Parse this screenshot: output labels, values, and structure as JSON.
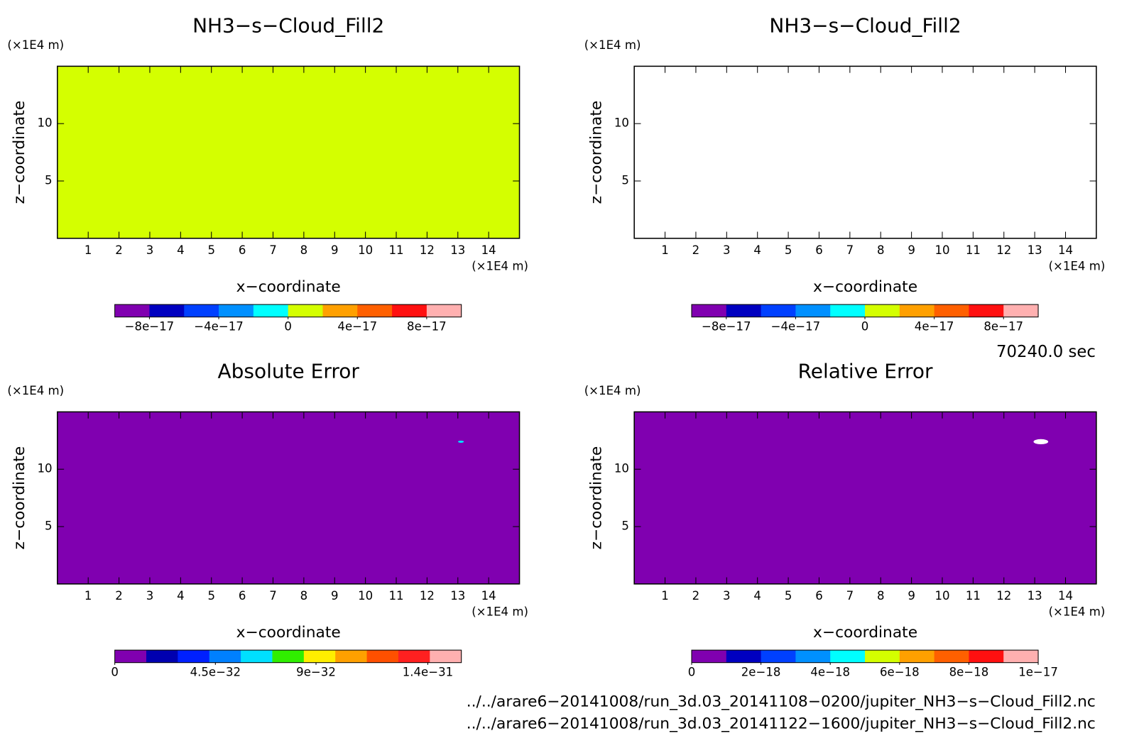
{
  "chart_data": [
    {
      "type": "contour",
      "title": "NH3−s−Cloud_Fill2",
      "xlabel": "x−coordinate",
      "ylabel": "z−coordinate",
      "xunit": "(×1E4 m)",
      "yunit": "(×1E4 m)",
      "xlim": [
        0,
        15
      ],
      "ylim": [
        0,
        15
      ],
      "xticks": [
        1,
        2,
        3,
        4,
        5,
        6,
        7,
        8,
        9,
        10,
        11,
        12,
        13,
        14
      ],
      "yticks": [
        5,
        10
      ],
      "field_value": 0,
      "colorbar": {
        "clim": [
          -1e-16,
          1e-16
        ],
        "colors": [
          "#8000b0",
          "#0000c0",
          "#0040ff",
          "#0090ff",
          "#00ffff",
          "#d4ff00",
          "#ffa000",
          "#ff6000",
          "#ff1010",
          "#ffb0b0"
        ],
        "ticks": [
          {
            "value": -8e-17,
            "label": "−8e−17"
          },
          {
            "value": -4e-17,
            "label": "−4e−17"
          },
          0,
          {
            "value": 4e-17,
            "label": "4e−17"
          },
          {
            "value": 8e-17,
            "label": "8e−17"
          }
        ]
      }
    },
    {
      "type": "contour",
      "title": "NH3−s−Cloud_Fill2",
      "xlabel": "x−coordinate",
      "ylabel": "z−coordinate",
      "xunit": "(×1E4 m)",
      "yunit": "(×1E4 m)",
      "xlim": [
        0,
        15
      ],
      "ylim": [
        0,
        15
      ],
      "xticks": [
        1,
        2,
        3,
        4,
        5,
        6,
        7,
        8,
        9,
        10,
        11,
        12,
        13,
        14
      ],
      "yticks": [
        5,
        10
      ],
      "colorbar": {
        "clim": [
          -1e-16,
          1e-16
        ],
        "colors": [
          "#8000b0",
          "#0000c0",
          "#0040ff",
          "#0090ff",
          "#00ffff",
          "#d4ff00",
          "#ffa000",
          "#ff6000",
          "#ff1010",
          "#ffb0b0"
        ],
        "ticks": [
          {
            "value": -8e-17,
            "label": "−8e−17"
          },
          {
            "value": -4e-17,
            "label": "−4e−17"
          },
          0,
          {
            "value": 4e-17,
            "label": "4e−17"
          },
          {
            "value": 8e-17,
            "label": "8e−17"
          }
        ]
      }
    },
    {
      "type": "contour",
      "title": "Absolute Error",
      "xlabel": "x−coordinate",
      "ylabel": "z−coordinate",
      "xunit": "(×1E4 m)",
      "yunit": "(×1E4 m)",
      "xlim": [
        0,
        15
      ],
      "ylim": [
        0,
        15
      ],
      "xticks": [
        1,
        2,
        3,
        4,
        5,
        6,
        7,
        8,
        9,
        10,
        11,
        12,
        13,
        14
      ],
      "yticks": [
        5,
        10
      ],
      "field_value": 0,
      "spot": {
        "x": 13.1,
        "z": 12.4,
        "value": 7e-32
      },
      "colorbar": {
        "clim": [
          0,
          1.55e-31
        ],
        "colors": [
          "#8000b0",
          "#0000b0",
          "#0020ff",
          "#0080ff",
          "#00e0ff",
          "#30ee00",
          "#ffee00",
          "#ffa000",
          "#ff5000",
          "#ff2020",
          "#ffb0b0"
        ],
        "ticks": [
          0,
          {
            "value": 4.5e-32,
            "label": "4.5e−32"
          },
          {
            "value": 9e-32,
            "label": "9e−32"
          },
          {
            "value": 1.4e-31,
            "label": "1.4e−31"
          }
        ]
      }
    },
    {
      "type": "contour",
      "title": "Relative Error",
      "xlabel": "x−coordinate",
      "ylabel": "z−coordinate",
      "xunit": "(×1E4 m)",
      "yunit": "(×1E4 m)",
      "xlim": [
        0,
        15
      ],
      "ylim": [
        0,
        15
      ],
      "xticks": [
        1,
        2,
        3,
        4,
        5,
        6,
        7,
        8,
        9,
        10,
        11,
        12,
        13,
        14
      ],
      "yticks": [
        5,
        10
      ],
      "field_value": 0,
      "missing": {
        "x": 13.2,
        "z": 12.4
      },
      "colorbar": {
        "clim": [
          0,
          1e-17
        ],
        "colors": [
          "#8000b0",
          "#0000c0",
          "#0040ff",
          "#0090ff",
          "#00ffff",
          "#d4ff00",
          "#ffa000",
          "#ff6000",
          "#ff1010",
          "#ffb0b0"
        ],
        "ticks": [
          0,
          {
            "value": 2e-18,
            "label": "2e−18"
          },
          {
            "value": 4e-18,
            "label": "4e−18"
          },
          {
            "value": 6e-18,
            "label": "6e−18"
          },
          {
            "value": 8e-18,
            "label": "8e−18"
          },
          {
            "value": 1e-17,
            "label": "1e−17"
          }
        ]
      }
    }
  ],
  "time": "70240.0 sec",
  "files": [
    "../../arare6−20141008/run_3d.03_20141108−0200/jupiter_NH3−s−Cloud_Fill2.nc",
    "../../arare6−20141008/run_3d.03_20141122−1600/jupiter_NH3−s−Cloud_Fill2.nc"
  ]
}
